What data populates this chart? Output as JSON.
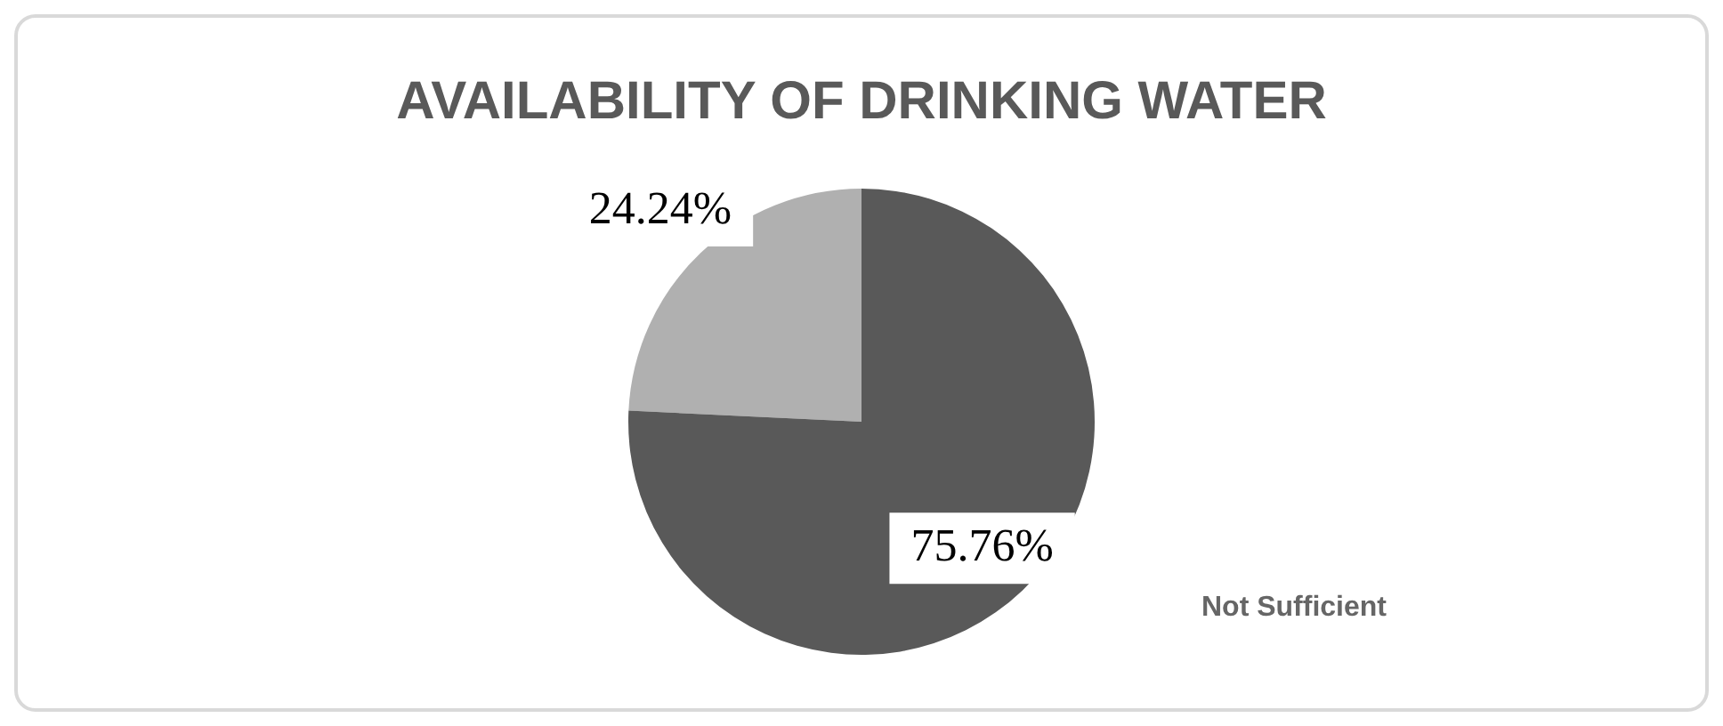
{
  "chart_data": {
    "type": "pie",
    "title": "AVAILABILITY OF DRINKING WATER",
    "categories": [
      null,
      "Not Sufficient"
    ],
    "values": [
      24.24,
      75.76
    ],
    "value_labels": [
      "24.24%",
      "75.76%"
    ],
    "colors": [
      "#b0b0b0",
      "#595959"
    ],
    "legend": false
  }
}
